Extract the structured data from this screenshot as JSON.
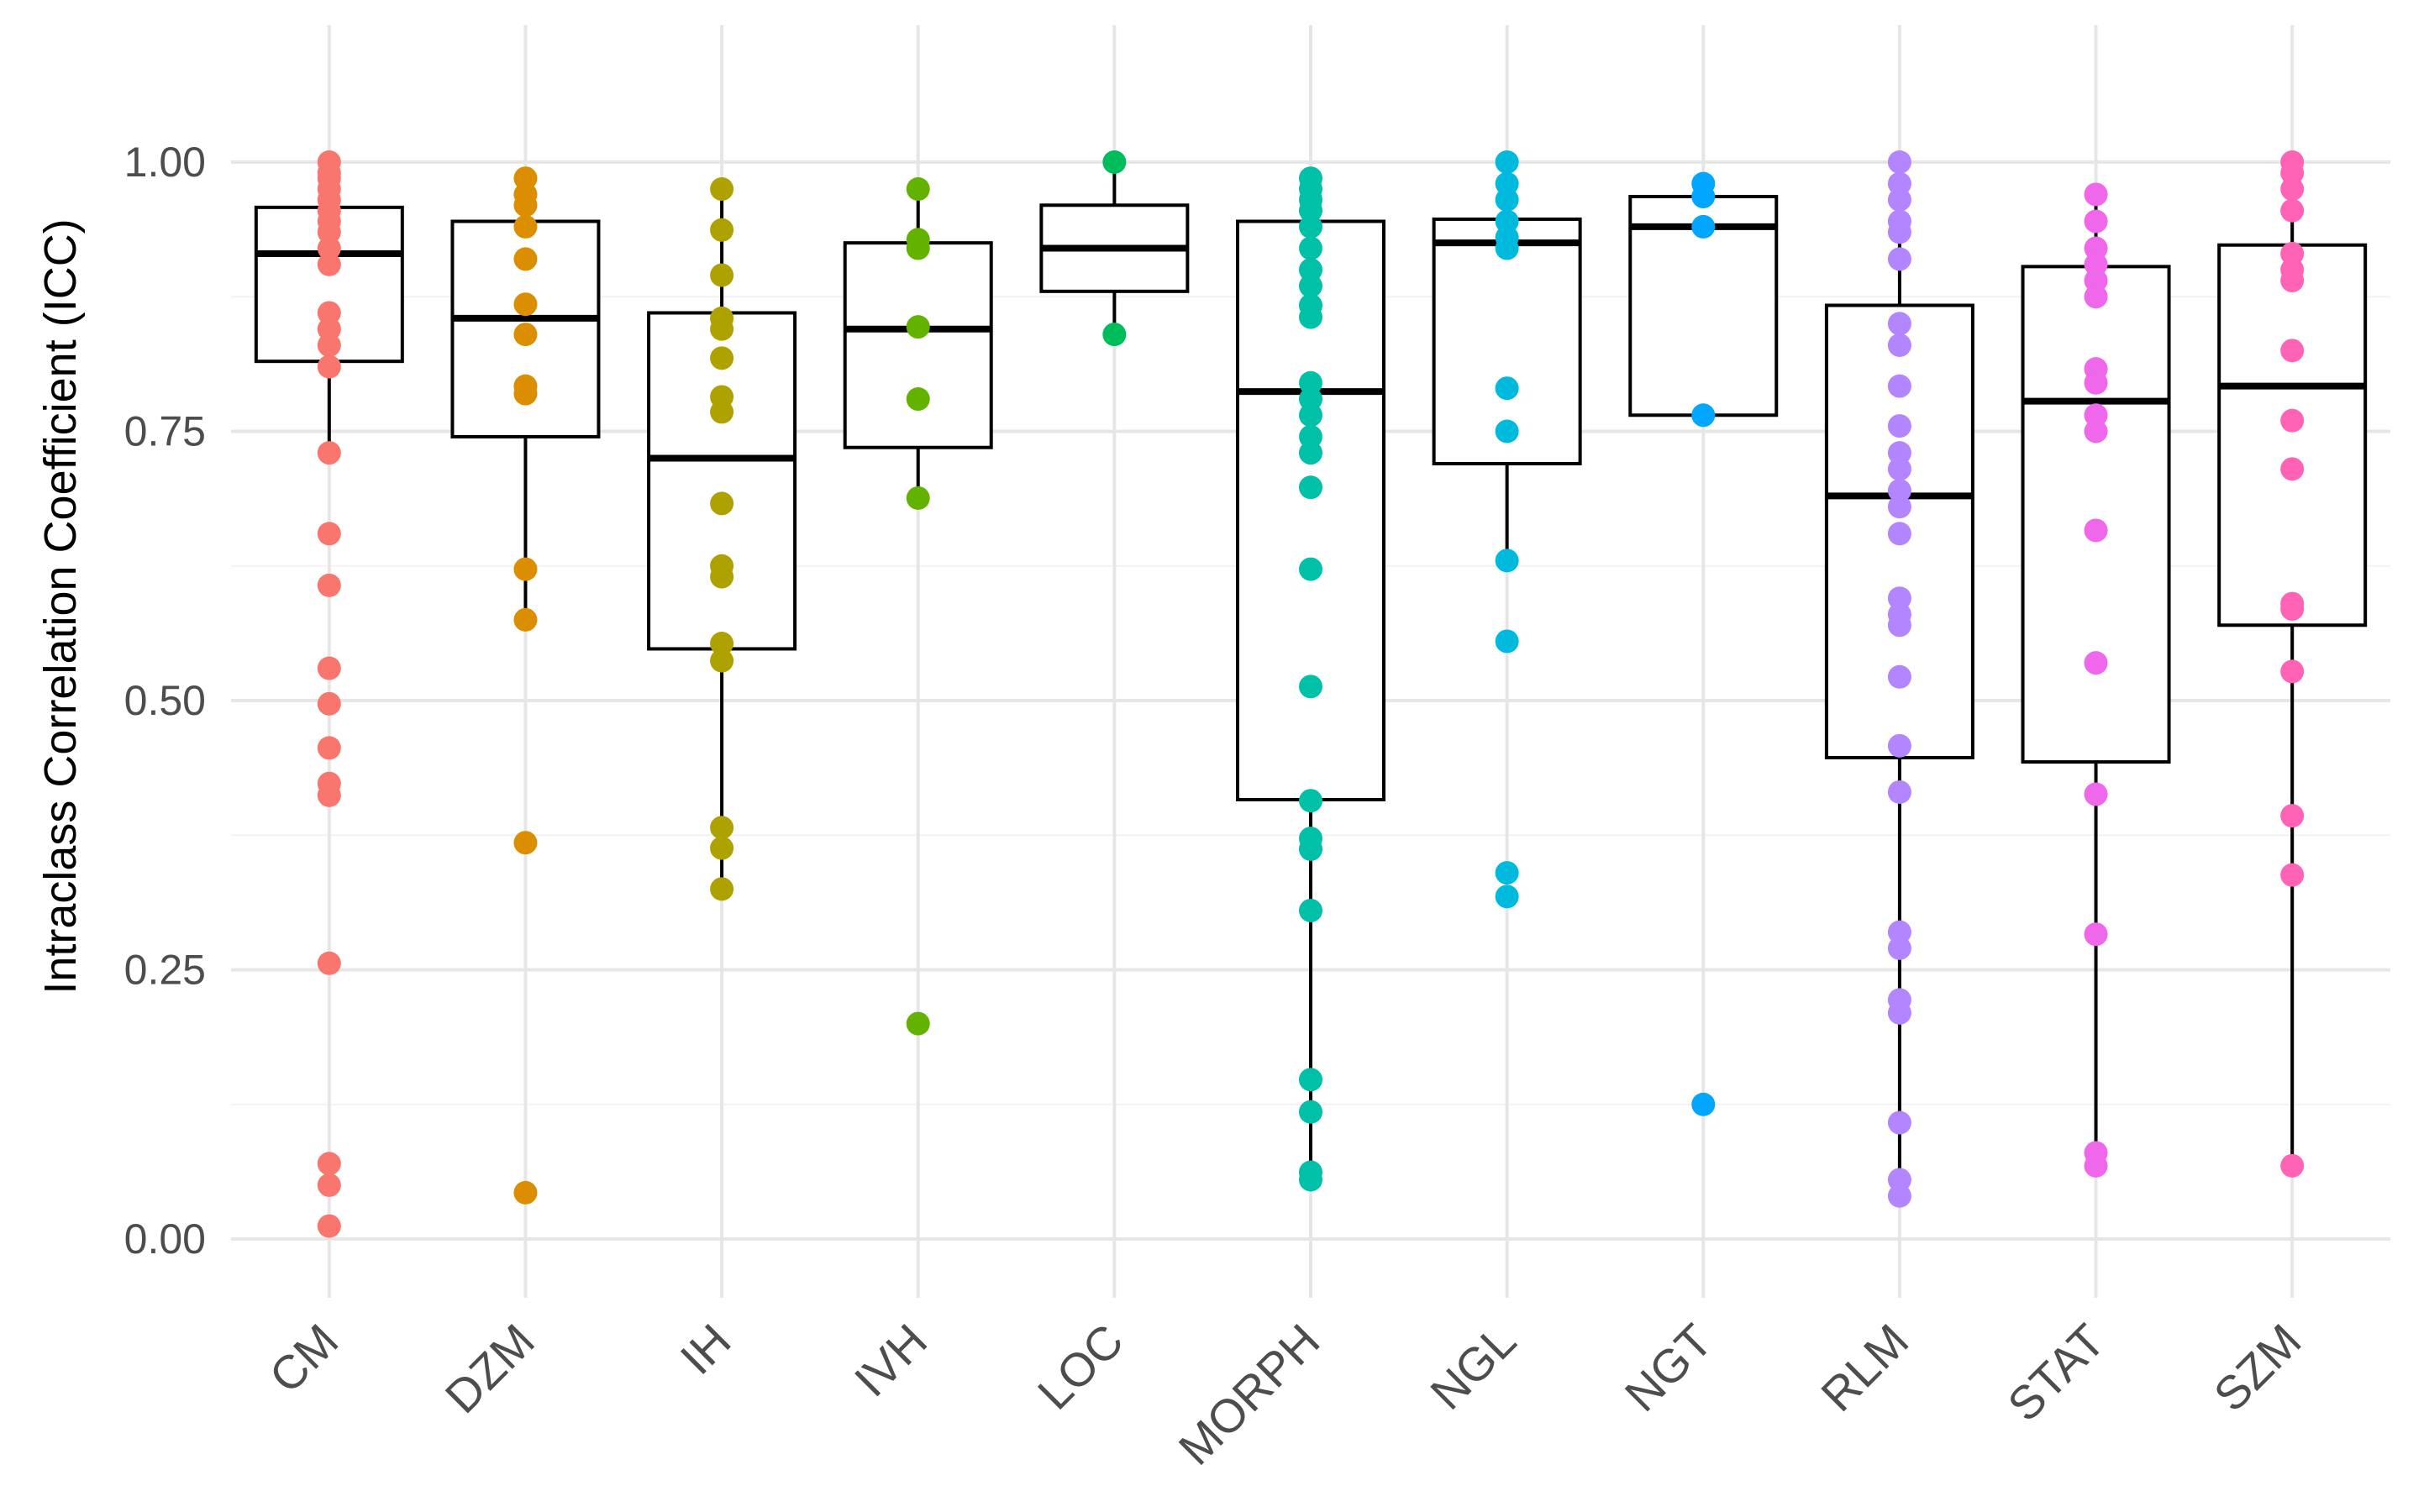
{
  "chart_data": {
    "type": "box",
    "title": "",
    "xlabel": "",
    "ylabel": "Intraclass Correlation Coefficient (ICC)",
    "ylim": [
      -0.06,
      1.13
    ],
    "yticks": [
      0.0,
      0.25,
      0.5,
      0.75,
      1.0
    ],
    "ytick_labels": [
      "0.00",
      "0.25",
      "0.50",
      "0.75",
      "1.00"
    ],
    "grid": true,
    "legend": "none",
    "categories": [
      "CM",
      "DZM",
      "IH",
      "IVH",
      "LOC",
      "MORPH",
      "NGL",
      "NGT",
      "RLM",
      "STAT",
      "SZM"
    ],
    "colors": [
      "#F8766D",
      "#DB8E00",
      "#AEA200",
      "#64B200",
      "#00BD5C",
      "#00C1A7",
      "#00BADE",
      "#00A6FF",
      "#B385FF",
      "#EF67EB",
      "#FF63B6"
    ],
    "boxes": [
      {
        "category": "CM",
        "q1": 0.815,
        "median": 0.915,
        "q3": 0.958,
        "whisker_low": 0.73,
        "whisker_high": 1.0
      },
      {
        "category": "DZM",
        "q1": 0.745,
        "median": 0.855,
        "q3": 0.945,
        "whisker_low": 0.575,
        "whisker_high": 0.985
      },
      {
        "category": "IH",
        "q1": 0.548,
        "median": 0.725,
        "q3": 0.86,
        "whisker_low": 0.325,
        "whisker_high": 0.975
      },
      {
        "category": "IVH",
        "q1": 0.735,
        "median": 0.845,
        "q3": 0.925,
        "whisker_low": 0.69,
        "whisker_high": 0.975
      },
      {
        "category": "LOC",
        "q1": 0.88,
        "median": 0.92,
        "q3": 0.96,
        "whisker_low": 0.84,
        "whisker_high": 1.0
      },
      {
        "category": "MORPH",
        "q1": 0.408,
        "median": 0.787,
        "q3": 0.945,
        "whisker_low": 0.055,
        "whisker_high": 0.985
      },
      {
        "category": "NGL",
        "q1": 0.72,
        "median": 0.925,
        "q3": 0.947,
        "whisker_low": 0.63,
        "whisker_high": 1.0
      },
      {
        "category": "NGT",
        "q1": 0.765,
        "median": 0.94,
        "q3": 0.968,
        "whisker_low": 0.765,
        "whisker_high": 0.98
      },
      {
        "category": "RLM",
        "q1": 0.447,
        "median": 0.69,
        "q3": 0.867,
        "whisker_low": 0.04,
        "whisker_high": 1.0
      },
      {
        "category": "STAT",
        "q1": 0.443,
        "median": 0.778,
        "q3": 0.903,
        "whisker_low": 0.065,
        "whisker_high": 0.97
      },
      {
        "category": "SZM",
        "q1": 0.57,
        "median": 0.792,
        "q3": 0.923,
        "whisker_low": 0.065,
        "whisker_high": 1.0
      }
    ],
    "points": [
      {
        "category": "CM",
        "values": [
          1.0,
          0.99,
          0.985,
          0.975,
          0.965,
          0.955,
          0.945,
          0.935,
          0.92,
          0.905,
          0.86,
          0.845,
          0.83,
          0.81,
          0.73,
          0.655,
          0.607,
          0.53,
          0.497,
          0.456,
          0.423,
          0.412,
          0.256,
          0.07,
          0.05,
          0.012
        ]
      },
      {
        "category": "DZM",
        "values": [
          0.985,
          0.97,
          0.96,
          0.94,
          0.91,
          0.868,
          0.84,
          0.792,
          0.785,
          0.622,
          0.575,
          0.368,
          0.043
        ]
      },
      {
        "category": "IH",
        "values": [
          0.975,
          0.937,
          0.895,
          0.855,
          0.845,
          0.818,
          0.782,
          0.768,
          0.683,
          0.625,
          0.615,
          0.553,
          0.537,
          0.382,
          0.363,
          0.325
        ]
      },
      {
        "category": "IVH",
        "values": [
          0.975,
          0.928,
          0.92,
          0.847,
          0.78,
          0.688,
          0.2
        ]
      },
      {
        "category": "LOC",
        "values": [
          1.0,
          0.84
        ]
      },
      {
        "category": "MORPH",
        "values": [
          0.985,
          0.975,
          0.965,
          0.955,
          0.94,
          0.92,
          0.9,
          0.885,
          0.867,
          0.856,
          0.795,
          0.78,
          0.765,
          0.745,
          0.73,
          0.698,
          0.622,
          0.513,
          0.407,
          0.372,
          0.362,
          0.305,
          0.148,
          0.118,
          0.062,
          0.055
        ]
      },
      {
        "category": "NGL",
        "values": [
          1.0,
          0.98,
          0.965,
          0.945,
          0.93,
          0.92,
          0.79,
          0.75,
          0.63,
          0.555,
          0.34,
          0.318
        ]
      },
      {
        "category": "NGT",
        "values": [
          0.98,
          0.968,
          0.94,
          0.765,
          0.125
        ]
      },
      {
        "category": "RLM",
        "values": [
          1.0,
          0.98,
          0.965,
          0.945,
          0.935,
          0.91,
          0.85,
          0.83,
          0.792,
          0.755,
          0.73,
          0.715,
          0.695,
          0.68,
          0.655,
          0.595,
          0.58,
          0.57,
          0.522,
          0.458,
          0.415,
          0.285,
          0.27,
          0.222,
          0.21,
          0.108,
          0.055,
          0.04
        ]
      },
      {
        "category": "STAT",
        "values": [
          0.97,
          0.945,
          0.92,
          0.905,
          0.89,
          0.875,
          0.808,
          0.795,
          0.765,
          0.75,
          0.658,
          0.535,
          0.413,
          0.283,
          0.08,
          0.068
        ]
      },
      {
        "category": "SZM",
        "values": [
          1.0,
          0.99,
          0.975,
          0.955,
          0.915,
          0.9,
          0.89,
          0.825,
          0.76,
          0.715,
          0.59,
          0.585,
          0.527,
          0.393,
          0.338,
          0.068
        ]
      }
    ]
  }
}
